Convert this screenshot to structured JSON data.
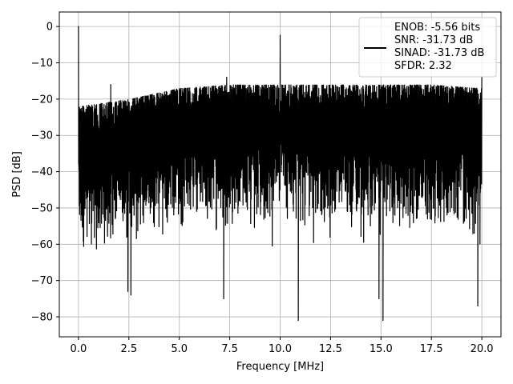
{
  "chart_data": {
    "type": "line",
    "xlabel": "Frequency [MHz]",
    "ylabel": "PSD [dB]",
    "xlim": [
      -0.95,
      20.95
    ],
    "ylim": [
      -85.5,
      4
    ],
    "x_ticks": [
      0.0,
      2.5,
      5.0,
      7.5,
      10.0,
      12.5,
      15.0,
      17.5,
      20.0
    ],
    "x_tick_labels": [
      "0.0",
      "2.5",
      "5.0",
      "7.5",
      "10.0",
      "12.5",
      "15.0",
      "17.5",
      "20.0"
    ],
    "y_ticks": [
      0,
      -10,
      -20,
      -30,
      -40,
      -50,
      -60,
      -70,
      -80
    ],
    "y_tick_labels": [
      "0",
      "−10",
      "−20",
      "−30",
      "−40",
      "−50",
      "−60",
      "−70",
      "−80"
    ],
    "grid": true,
    "legend_position": "top-right",
    "series": [
      {
        "name": "ENOB: -5.56 bits\nSNR: -31.73 dB\nSINAD: -31.73 dB\nSFDR: 2.32",
        "color": "#000000",
        "x_range": [
          0,
          20
        ],
        "noise_floor_top_approx": [
          [
            0,
            -22
          ],
          [
            2.5,
            -20
          ],
          [
            5,
            -17
          ],
          [
            7.5,
            -16
          ],
          [
            10,
            -16
          ],
          [
            12.5,
            -16
          ],
          [
            15,
            -16
          ],
          [
            17.5,
            -16
          ],
          [
            20,
            -17
          ]
        ],
        "noise_floor_bottom_approx": [
          [
            0,
            -62
          ],
          [
            5,
            -57
          ],
          [
            10,
            -56
          ],
          [
            15,
            -56
          ],
          [
            20,
            -58
          ]
        ],
        "peaks": [
          {
            "x": 0.0,
            "y": 0.0
          },
          {
            "x": 1.6,
            "y": -16
          },
          {
            "x": 7.35,
            "y": -14
          },
          {
            "x": 10.0,
            "y": -2.4
          },
          {
            "x": 20.0,
            "y": -14
          }
        ],
        "deep_nulls": [
          {
            "x": 2.45,
            "y": -73
          },
          {
            "x": 2.6,
            "y": -74
          },
          {
            "x": 7.2,
            "y": -75
          },
          {
            "x": 10.9,
            "y": -81
          },
          {
            "x": 14.9,
            "y": -75
          },
          {
            "x": 15.1,
            "y": -81
          },
          {
            "x": 19.8,
            "y": -77
          }
        ]
      }
    ]
  },
  "legend": {
    "lines": [
      "ENOB: -5.56 bits",
      "SNR: -31.73 dB",
      "SINAD: -31.73 dB",
      "SFDR: 2.32"
    ],
    "line_color": "#000000"
  }
}
